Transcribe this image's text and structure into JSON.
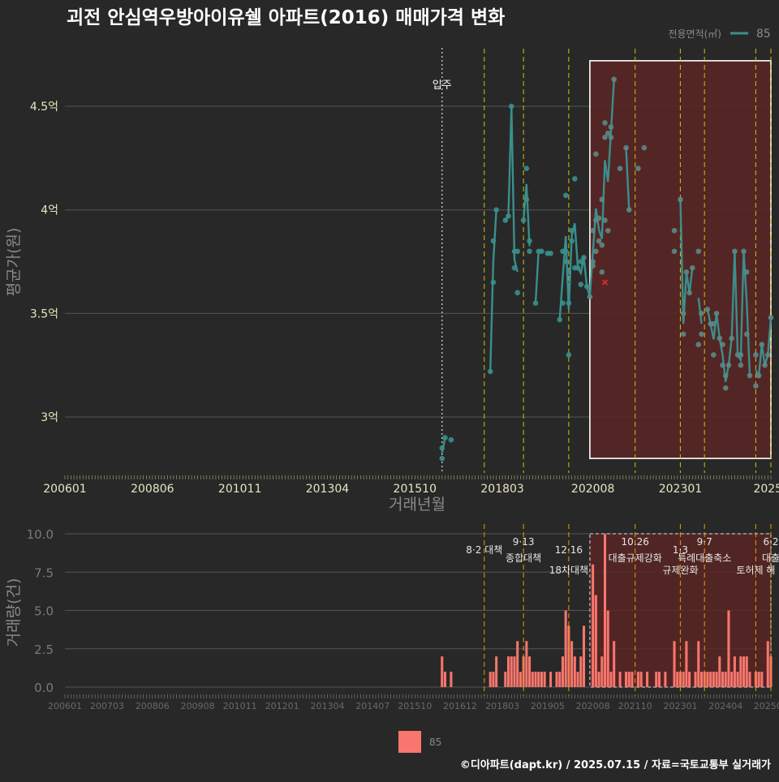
{
  "colors": {
    "background": "#282828",
    "series": "#3a8f8c",
    "bar": "#f8766d",
    "highlight_fill": "#5c2424",
    "policy_line_top": "#d8d000",
    "policy_line_bottom": "#e8a000",
    "move_in_line": "#bbbbbb",
    "grid": "#555555",
    "tick_text": "#e8e6c0",
    "axis_title": "#8a8a8a"
  },
  "title": "괴전 안심역우방아이유쉘 아파트(2016) 매매가격 변화",
  "footer": "©디아파트(dapt.kr) / 2025.07.15 / 자료=국토교통부 실거래가",
  "chart_data": [
    {
      "type": "line",
      "name": "price",
      "title": "괴전 안심역우방아이유쉘 아파트(2016) 매매가격 변화",
      "xlabel": "거래년월",
      "ylabel": "평균가(원)",
      "x_domain_months": [
        0,
        234
      ],
      "ylim": [
        2.73,
        4.79
      ],
      "y_ticks": [
        {
          "value": 3.0,
          "label": "3억"
        },
        {
          "value": 3.5,
          "label": "3.5억"
        },
        {
          "value": 4.0,
          "label": "4억"
        },
        {
          "value": 4.5,
          "label": "4.5억"
        }
      ],
      "x_ticks": [
        {
          "month": 0,
          "label": "200601"
        },
        {
          "month": 29,
          "label": "200806"
        },
        {
          "month": 58,
          "label": "201011"
        },
        {
          "month": 87,
          "label": "201304"
        },
        {
          "month": 116,
          "label": "201510"
        },
        {
          "month": 145,
          "label": "201803"
        },
        {
          "month": 175,
          "label": "202008"
        },
        {
          "month": 204,
          "label": "202301"
        },
        {
          "month": 233,
          "label": "2025"
        }
      ],
      "legend": {
        "title": "전용면적(㎡)",
        "label": "85",
        "position": "top-right"
      },
      "move_in": {
        "month": 125,
        "label": "입주"
      },
      "policy_months": [
        139,
        152,
        167,
        189,
        204,
        212,
        229,
        234
      ],
      "highlight": {
        "x_range_months": [
          174,
          234
        ],
        "y_range": [
          2.8,
          4.72
        ]
      },
      "marked_point": {
        "month": 179,
        "value": 3.65
      },
      "series": [
        {
          "name": "85",
          "points": [
            [
              125,
              2.8
            ],
            [
              125,
              2.85
            ],
            [
              126,
              2.9
            ],
            [
              128,
              2.89
            ],
            [
              141,
              3.22
            ],
            [
              142,
              3.85
            ],
            [
              142,
              3.65
            ],
            [
              143,
              4.0
            ],
            [
              146,
              3.95
            ],
            [
              147,
              3.97
            ],
            [
              148,
              4.5
            ],
            [
              149,
              3.8
            ],
            [
              149,
              3.72
            ],
            [
              150,
              3.6
            ],
            [
              150,
              3.8
            ],
            [
              152,
              3.95
            ],
            [
              153,
              4.2
            ],
            [
              153,
              4.05
            ],
            [
              154,
              3.85
            ],
            [
              154,
              3.8
            ],
            [
              156,
              3.55
            ],
            [
              157,
              3.8
            ],
            [
              158,
              3.8
            ],
            [
              160,
              3.79
            ],
            [
              161,
              3.79
            ],
            [
              164,
              3.47
            ],
            [
              165,
              3.8
            ],
            [
              165,
              3.55
            ],
            [
              166,
              3.8
            ],
            [
              166,
              3.75
            ],
            [
              166,
              4.07
            ],
            [
              167,
              3.3
            ],
            [
              167,
              3.55
            ],
            [
              167,
              3.7
            ],
            [
              168,
              3.9
            ],
            [
              168,
              3.85
            ],
            [
              169,
              3.72
            ],
            [
              169,
              4.15
            ],
            [
              170,
              3.72
            ],
            [
              171,
              3.64
            ],
            [
              171,
              3.75
            ],
            [
              172,
              3.77
            ],
            [
              173,
              3.63
            ],
            [
              174,
              3.58
            ],
            [
              175,
              3.73
            ],
            [
              175,
              3.9
            ],
            [
              175,
              3.75
            ],
            [
              176,
              4.27
            ],
            [
              176,
              3.95
            ],
            [
              176,
              3.8
            ],
            [
              177,
              3.85
            ],
            [
              177,
              3.96
            ],
            [
              178,
              3.83
            ],
            [
              178,
              3.7
            ],
            [
              178,
              4.05
            ],
            [
              179,
              3.95
            ],
            [
              179,
              4.35
            ],
            [
              179,
              4.42
            ],
            [
              180,
              4.37
            ],
            [
              180,
              3.9
            ],
            [
              181,
              4.4
            ],
            [
              181,
              4.35
            ],
            [
              182,
              4.63
            ],
            [
              184,
              4.2
            ],
            [
              186,
              4.3
            ],
            [
              187,
              4.0
            ],
            [
              190,
              4.2
            ],
            [
              192,
              4.3
            ],
            [
              202,
              3.9
            ],
            [
              202,
              3.8
            ],
            [
              204,
              4.05
            ],
            [
              205,
              3.4
            ],
            [
              205,
              3.5
            ],
            [
              206,
              3.7
            ],
            [
              207,
              3.6
            ],
            [
              208,
              3.72
            ],
            [
              210,
              3.8
            ],
            [
              210,
              3.35
            ],
            [
              211,
              3.4
            ],
            [
              211,
              3.5
            ],
            [
              213,
              3.52
            ],
            [
              214,
              3.45
            ],
            [
              215,
              3.3
            ],
            [
              215,
              3.45
            ],
            [
              216,
              3.5
            ],
            [
              217,
              3.38
            ],
            [
              218,
              3.25
            ],
            [
              218,
              3.35
            ],
            [
              219,
              3.14
            ],
            [
              219,
              3.2
            ],
            [
              220,
              3.25
            ],
            [
              221,
              3.38
            ],
            [
              222,
              3.8
            ],
            [
              223,
              3.3
            ],
            [
              224,
              3.3
            ],
            [
              224,
              3.25
            ],
            [
              225,
              3.8
            ],
            [
              226,
              3.7
            ],
            [
              226,
              3.4
            ],
            [
              227,
              3.2
            ],
            [
              229,
              3.15
            ],
            [
              229,
              3.3
            ],
            [
              230,
              3.2
            ],
            [
              231,
              3.35
            ],
            [
              232,
              3.25
            ],
            [
              233,
              3.3
            ],
            [
              234,
              3.48
            ]
          ]
        }
      ]
    },
    {
      "type": "bar",
      "name": "volume",
      "xlabel": "",
      "ylabel": "거래량(건)",
      "x_domain_months": [
        0,
        234
      ],
      "ylim": [
        0,
        10
      ],
      "y_ticks": [
        {
          "value": 0,
          "label": "0.0"
        },
        {
          "value": 2.5,
          "label": "2.5"
        },
        {
          "value": 5,
          "label": "5.0"
        },
        {
          "value": 7.5,
          "label": "7.5"
        },
        {
          "value": 10,
          "label": "10.0"
        }
      ],
      "x_ticks": [
        {
          "month": 0,
          "label": "200601"
        },
        {
          "month": 14,
          "label": "200703"
        },
        {
          "month": 29,
          "label": "200806"
        },
        {
          "month": 44,
          "label": "200908"
        },
        {
          "month": 58,
          "label": "201011"
        },
        {
          "month": 72,
          "label": "201201"
        },
        {
          "month": 87,
          "label": "201304"
        },
        {
          "month": 102,
          "label": "201407"
        },
        {
          "month": 116,
          "label": "201510"
        },
        {
          "month": 131,
          "label": "201612"
        },
        {
          "month": 145,
          "label": "201803"
        },
        {
          "month": 160,
          "label": "201905"
        },
        {
          "month": 175,
          "label": "202008"
        },
        {
          "month": 189,
          "label": "202110"
        },
        {
          "month": 204,
          "label": "202301"
        },
        {
          "month": 219,
          "label": "202404"
        },
        {
          "month": 233,
          "label": "20250"
        }
      ],
      "legend": {
        "label": "85",
        "position": "bottom"
      },
      "highlight": {
        "x_range_months": [
          174,
          234
        ],
        "y_range": [
          0,
          10
        ]
      },
      "policies": [
        {
          "month": 139,
          "label": "8·2 대책",
          "label2": ""
        },
        {
          "month": 152,
          "label": "9·13",
          "label2": "종합대책"
        },
        {
          "month": 167,
          "label": "12·16",
          "label2": "18차대책"
        },
        {
          "month": 189,
          "label": "10.26",
          "label2": "대출규제강화"
        },
        {
          "month": 204,
          "label": "1·3",
          "label2": "규제완화"
        },
        {
          "month": 212,
          "label": "9·7",
          "label2": "특례대출축소"
        },
        {
          "month": 229,
          "label": "",
          "label2": "토허제 해"
        },
        {
          "month": 234,
          "label": "6·2",
          "label2": "대출"
        }
      ],
      "bars": [
        [
          125,
          2
        ],
        [
          126,
          1
        ],
        [
          128,
          1
        ],
        [
          141,
          1
        ],
        [
          142,
          1
        ],
        [
          143,
          2
        ],
        [
          146,
          1
        ],
        [
          147,
          2
        ],
        [
          148,
          2
        ],
        [
          149,
          2
        ],
        [
          150,
          3
        ],
        [
          151,
          1
        ],
        [
          152,
          2
        ],
        [
          153,
          3
        ],
        [
          154,
          2
        ],
        [
          155,
          1
        ],
        [
          156,
          1
        ],
        [
          157,
          1
        ],
        [
          158,
          1
        ],
        [
          159,
          1
        ],
        [
          161,
          1
        ],
        [
          163,
          1
        ],
        [
          164,
          1
        ],
        [
          165,
          2
        ],
        [
          166,
          5
        ],
        [
          167,
          4
        ],
        [
          168,
          3
        ],
        [
          169,
          2
        ],
        [
          170,
          1
        ],
        [
          171,
          2
        ],
        [
          172,
          4
        ],
        [
          175,
          8
        ],
        [
          176,
          6
        ],
        [
          177,
          1
        ],
        [
          178,
          2
        ],
        [
          179,
          10
        ],
        [
          180,
          5
        ],
        [
          181,
          1
        ],
        [
          182,
          3
        ],
        [
          184,
          1
        ],
        [
          186,
          1
        ],
        [
          187,
          1
        ],
        [
          188,
          1
        ],
        [
          190,
          1
        ],
        [
          191,
          1
        ],
        [
          193,
          1
        ],
        [
          196,
          1
        ],
        [
          197,
          1
        ],
        [
          199,
          1
        ],
        [
          202,
          3
        ],
        [
          203,
          1
        ],
        [
          204,
          1
        ],
        [
          205,
          1
        ],
        [
          206,
          3
        ],
        [
          207,
          1
        ],
        [
          209,
          1
        ],
        [
          210,
          3
        ],
        [
          211,
          1
        ],
        [
          212,
          1
        ],
        [
          213,
          1
        ],
        [
          214,
          1
        ],
        [
          215,
          1
        ],
        [
          216,
          1
        ],
        [
          217,
          2
        ],
        [
          218,
          1
        ],
        [
          219,
          1
        ],
        [
          220,
          5
        ],
        [
          221,
          1
        ],
        [
          222,
          2
        ],
        [
          223,
          1
        ],
        [
          224,
          2
        ],
        [
          225,
          2
        ],
        [
          226,
          2
        ],
        [
          227,
          1
        ],
        [
          229,
          1
        ],
        [
          230,
          1
        ],
        [
          231,
          1
        ],
        [
          233,
          3
        ],
        [
          234,
          2
        ]
      ]
    }
  ]
}
